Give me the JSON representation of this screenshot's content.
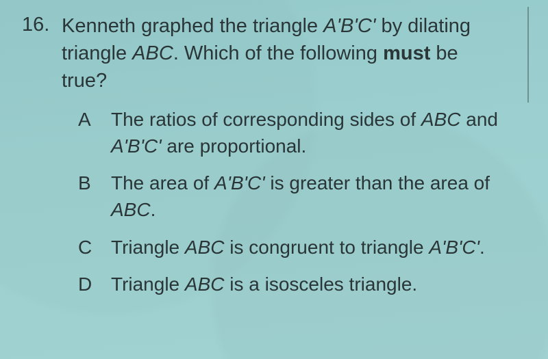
{
  "colors": {
    "background": "#98cdce",
    "text": "#2a3638",
    "rule": "#4a5e60"
  },
  "typography": {
    "family": "Arial",
    "question_fontsize_pt": 22,
    "option_fontsize_pt": 21,
    "line_height": 1.38
  },
  "question": {
    "number": "16.",
    "stem_pre": "Kenneth graphed the triangle ",
    "stem_tri1": "A'B'C' ",
    "stem_mid": "by dilating triangle ",
    "stem_tri2": "ABC",
    "stem_post1": ". Which of the following ",
    "stem_bold": "must",
    "stem_post2": " be true?"
  },
  "options": {
    "A": {
      "letter": "A",
      "t1": "The ratios of corresponding sides of ",
      "i1": "ABC",
      "t2": " and ",
      "i2": "A'B'C'",
      "t3": " are proportional."
    },
    "B": {
      "letter": "B",
      "t1": "The area of ",
      "i1": "A'B'C'",
      "t2": " is greater than the area of ",
      "i2": "ABC",
      "t3": "."
    },
    "C": {
      "letter": "C",
      "t1": "Triangle ",
      "i1": "ABC",
      "t2": " is congruent to triangle ",
      "i2": "A'B'C'",
      "t3": "."
    },
    "D": {
      "letter": "D",
      "t1": "Triangle ",
      "i1": "ABC",
      "t2": " is a isosceles triangle.",
      "i2": "",
      "t3": ""
    }
  }
}
